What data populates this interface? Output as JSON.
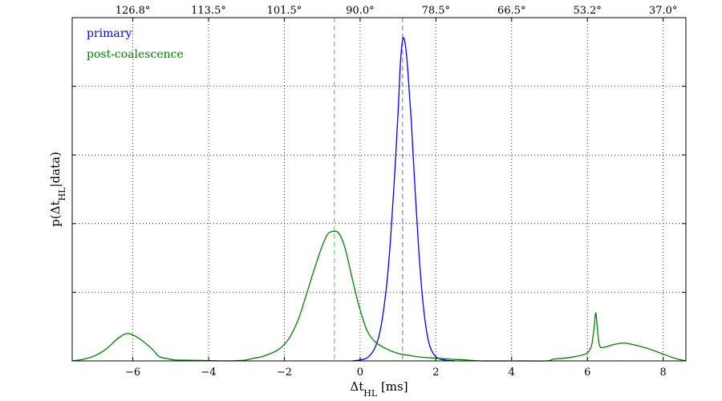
{
  "chart_data": {
    "type": "line",
    "xlabel": "Δt_HL [ms]",
    "ylabel": "p(Δt_HL|data)",
    "xlim": [
      -7.6,
      8.6
    ],
    "ylim": [
      0,
      1.0
    ],
    "grid": true,
    "legend_placement": "top-left",
    "x_ticks": [
      -6,
      -4,
      -2,
      0,
      2,
      4,
      6,
      8
    ],
    "x_tick_labels": [
      "−6",
      "−4",
      "−2",
      "0",
      "2",
      "4",
      "6",
      "8"
    ],
    "top_axis_ticks": [
      {
        "x": -6.0,
        "label": "126.8°"
      },
      {
        "x": -4.0,
        "label": "113.5°"
      },
      {
        "x": -2.0,
        "label": "101.5°"
      },
      {
        "x": 0.0,
        "label": "90.0°"
      },
      {
        "x": 2.0,
        "label": "78.5°"
      },
      {
        "x": 4.0,
        "label": "66.5°"
      },
      {
        "x": 6.0,
        "label": "53.2°"
      },
      {
        "x": 8.0,
        "label": "37.0°"
      }
    ],
    "y_ticks": [
      0.2,
      0.4,
      0.6,
      0.8
    ],
    "series": [
      {
        "name": "primary",
        "color": "#0000ff",
        "vline": 1.12,
        "points": [
          [
            -0.2,
            0.0
          ],
          [
            0.0,
            0.003
          ],
          [
            0.2,
            0.01
          ],
          [
            0.4,
            0.04
          ],
          [
            0.55,
            0.1
          ],
          [
            0.7,
            0.22
          ],
          [
            0.8,
            0.35
          ],
          [
            0.9,
            0.52
          ],
          [
            1.0,
            0.72
          ],
          [
            1.06,
            0.86
          ],
          [
            1.12,
            0.935
          ],
          [
            1.18,
            0.93
          ],
          [
            1.25,
            0.86
          ],
          [
            1.35,
            0.7
          ],
          [
            1.45,
            0.5
          ],
          [
            1.55,
            0.32
          ],
          [
            1.65,
            0.18
          ],
          [
            1.75,
            0.09
          ],
          [
            1.85,
            0.04
          ],
          [
            2.0,
            0.012
          ],
          [
            2.2,
            0.003
          ],
          [
            2.5,
            0.0
          ]
        ]
      },
      {
        "name": "post-coalescence",
        "color": "#008000",
        "vline": -0.68,
        "points": [
          [
            -7.6,
            0.0
          ],
          [
            -7.3,
            0.005
          ],
          [
            -7.0,
            0.015
          ],
          [
            -6.7,
            0.035
          ],
          [
            -6.4,
            0.065
          ],
          [
            -6.15,
            0.08
          ],
          [
            -5.9,
            0.07
          ],
          [
            -5.65,
            0.05
          ],
          [
            -5.45,
            0.03
          ],
          [
            -5.3,
            0.012
          ],
          [
            -5.1,
            0.007
          ],
          [
            -4.9,
            0.003
          ],
          [
            -4.5,
            0.002
          ],
          [
            -4.0,
            0.001
          ],
          [
            -3.5,
            0.0
          ],
          [
            -3.2,
            0.001
          ],
          [
            -3.0,
            0.003
          ],
          [
            -2.8,
            0.008
          ],
          [
            -2.6,
            0.012
          ],
          [
            -2.4,
            0.02
          ],
          [
            -2.2,
            0.03
          ],
          [
            -2.0,
            0.048
          ],
          [
            -1.8,
            0.08
          ],
          [
            -1.6,
            0.13
          ],
          [
            -1.4,
            0.2
          ],
          [
            -1.2,
            0.27
          ],
          [
            -1.0,
            0.335
          ],
          [
            -0.85,
            0.37
          ],
          [
            -0.68,
            0.378
          ],
          [
            -0.55,
            0.37
          ],
          [
            -0.4,
            0.33
          ],
          [
            -0.25,
            0.26
          ],
          [
            -0.1,
            0.19
          ],
          [
            0.05,
            0.13
          ],
          [
            0.2,
            0.085
          ],
          [
            0.4,
            0.055
          ],
          [
            0.7,
            0.035
          ],
          [
            1.0,
            0.022
          ],
          [
            1.3,
            0.016
          ],
          [
            1.6,
            0.011
          ],
          [
            2.0,
            0.008
          ],
          [
            2.4,
            0.005
          ],
          [
            2.8,
            0.003
          ],
          [
            3.2,
            0.0
          ],
          [
            4.0,
            0.0
          ],
          [
            4.9,
            0.0
          ],
          [
            5.1,
            0.005
          ],
          [
            5.4,
            0.008
          ],
          [
            5.7,
            0.013
          ],
          [
            5.95,
            0.02
          ],
          [
            6.05,
            0.03
          ],
          [
            6.12,
            0.05
          ],
          [
            6.18,
            0.1
          ],
          [
            6.22,
            0.14
          ],
          [
            6.26,
            0.1
          ],
          [
            6.32,
            0.045
          ],
          [
            6.45,
            0.04
          ],
          [
            6.7,
            0.048
          ],
          [
            6.95,
            0.052
          ],
          [
            7.2,
            0.048
          ],
          [
            7.6,
            0.036
          ],
          [
            8.0,
            0.02
          ],
          [
            8.3,
            0.008
          ],
          [
            8.6,
            0.0
          ]
        ]
      }
    ]
  }
}
